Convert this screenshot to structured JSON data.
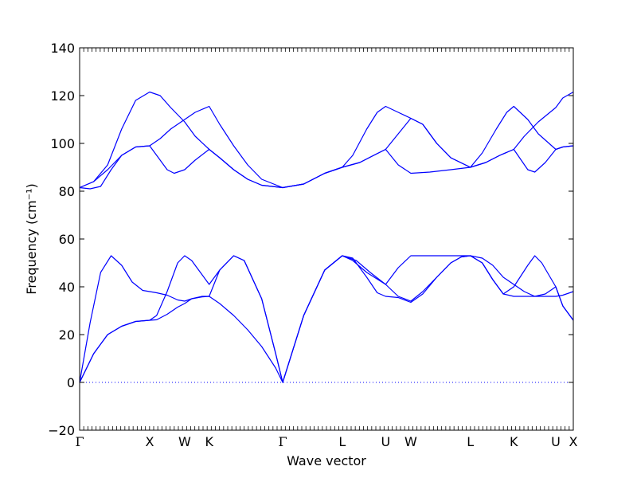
{
  "chart_data": {
    "type": "line",
    "xlabel": "Wave vector",
    "ylabel": "Frequency",
    "ylabel_unit": "(cm⁻¹)",
    "ylim": [
      -20,
      140
    ],
    "y_ticks": [
      -20,
      0,
      20,
      40,
      60,
      80,
      100,
      120,
      140
    ],
    "grid": false,
    "legend": "none",
    "line_color": "#0000ff",
    "zero_line": {
      "y": 0,
      "style": "dotted",
      "color": "#0000ff"
    },
    "q_points": [
      {
        "label": "Γ",
        "x": 0.0
      },
      {
        "label": "X",
        "x": 1.0
      },
      {
        "label": "W",
        "x": 1.5
      },
      {
        "label": "K",
        "x": 1.85
      },
      {
        "label": "Γ",
        "x": 2.9
      },
      {
        "label": "L",
        "x": 3.75
      },
      {
        "label": "U",
        "x": 4.37
      },
      {
        "label": "W",
        "x": 4.73
      },
      {
        "label": "L",
        "x": 5.58
      },
      {
        "label": "K",
        "x": 6.2
      },
      {
        "label": "U",
        "x": 6.8
      },
      {
        "label": "X",
        "x": 7.05
      }
    ],
    "branches": [
      {
        "name": "",
        "points": [
          [
            0,
            0
          ],
          [
            0.2,
            12
          ],
          [
            0.4,
            20
          ],
          [
            0.6,
            23.5
          ],
          [
            0.8,
            25.5
          ],
          [
            1.0,
            26
          ],
          [
            1.1,
            26.2
          ],
          [
            1.25,
            28.5
          ],
          [
            1.4,
            31.5
          ],
          [
            1.5,
            33
          ],
          [
            1.6,
            35
          ],
          [
            1.75,
            35.8
          ],
          [
            1.85,
            36
          ],
          [
            2.0,
            33
          ],
          [
            2.2,
            28
          ],
          [
            2.4,
            22
          ],
          [
            2.6,
            15
          ],
          [
            2.8,
            6
          ],
          [
            2.9,
            0
          ],
          [
            3.2,
            28
          ],
          [
            3.5,
            47
          ],
          [
            3.75,
            53
          ],
          [
            3.9,
            51
          ],
          [
            4.1,
            46
          ],
          [
            4.37,
            41
          ],
          [
            4.55,
            36
          ],
          [
            4.73,
            34
          ],
          [
            4.9,
            38
          ],
          [
            5.1,
            44
          ],
          [
            5.3,
            50
          ],
          [
            5.45,
            52.5
          ],
          [
            5.58,
            53
          ],
          [
            5.75,
            50
          ],
          [
            5.9,
            43
          ],
          [
            6.05,
            37
          ],
          [
            6.2,
            36
          ],
          [
            6.5,
            36
          ],
          [
            6.8,
            36
          ],
          [
            6.9,
            36.5
          ],
          [
            7.05,
            38
          ]
        ]
      },
      {
        "name": "",
        "points": [
          [
            0,
            0
          ],
          [
            0.2,
            12
          ],
          [
            0.4,
            20
          ],
          [
            0.6,
            23.5
          ],
          [
            0.8,
            25.5
          ],
          [
            1.0,
            26
          ],
          [
            1.1,
            28
          ],
          [
            1.25,
            38
          ],
          [
            1.4,
            50
          ],
          [
            1.5,
            53
          ],
          [
            1.6,
            51
          ],
          [
            1.75,
            45
          ],
          [
            1.85,
            41
          ],
          [
            2.0,
            47
          ],
          [
            2.2,
            53
          ],
          [
            2.35,
            51
          ],
          [
            2.6,
            35
          ],
          [
            2.8,
            12
          ],
          [
            2.9,
            0
          ],
          [
            3.2,
            28
          ],
          [
            3.5,
            47
          ],
          [
            3.75,
            53
          ],
          [
            3.9,
            52
          ],
          [
            4.1,
            44
          ],
          [
            4.25,
            37.5
          ],
          [
            4.37,
            36
          ],
          [
            4.55,
            35.5
          ],
          [
            4.73,
            33.5
          ],
          [
            4.9,
            37
          ],
          [
            5.1,
            44
          ],
          [
            5.3,
            50
          ],
          [
            5.45,
            52.5
          ],
          [
            5.58,
            53
          ],
          [
            5.75,
            50
          ],
          [
            5.9,
            43
          ],
          [
            6.05,
            37
          ],
          [
            6.2,
            40
          ],
          [
            6.4,
            49
          ],
          [
            6.5,
            53
          ],
          [
            6.6,
            50
          ],
          [
            6.8,
            40
          ],
          [
            6.9,
            32
          ],
          [
            7.05,
            26
          ]
        ]
      },
      {
        "name": "",
        "points": [
          [
            0,
            0
          ],
          [
            0.15,
            25
          ],
          [
            0.3,
            46
          ],
          [
            0.45,
            53
          ],
          [
            0.6,
            49
          ],
          [
            0.75,
            42
          ],
          [
            0.9,
            38.5
          ],
          [
            1.0,
            38
          ],
          [
            1.1,
            37.5
          ],
          [
            1.25,
            36.5
          ],
          [
            1.4,
            34.5
          ],
          [
            1.5,
            34
          ],
          [
            1.6,
            35
          ],
          [
            1.75,
            36
          ],
          [
            1.85,
            36
          ],
          [
            2.0,
            47
          ],
          [
            2.2,
            53
          ],
          [
            2.35,
            51
          ],
          [
            2.6,
            35
          ],
          [
            2.8,
            12
          ],
          [
            2.9,
            0
          ],
          [
            3.2,
            28
          ],
          [
            3.5,
            47
          ],
          [
            3.75,
            53
          ],
          [
            3.95,
            51
          ],
          [
            4.15,
            46
          ],
          [
            4.37,
            41
          ],
          [
            4.55,
            48
          ],
          [
            4.73,
            53
          ],
          [
            5.0,
            53
          ],
          [
            5.3,
            53
          ],
          [
            5.58,
            53
          ],
          [
            5.75,
            52
          ],
          [
            5.9,
            49
          ],
          [
            6.05,
            44
          ],
          [
            6.2,
            41
          ],
          [
            6.35,
            38
          ],
          [
            6.5,
            36
          ],
          [
            6.65,
            37
          ],
          [
            6.8,
            40
          ],
          [
            6.9,
            32
          ],
          [
            7.05,
            26
          ]
        ]
      },
      {
        "name": "",
        "points": [
          [
            0,
            81.5
          ],
          [
            0.15,
            81
          ],
          [
            0.3,
            82
          ],
          [
            0.45,
            89
          ],
          [
            0.6,
            95
          ],
          [
            0.8,
            98.5
          ],
          [
            1.0,
            99
          ],
          [
            1.1,
            95
          ],
          [
            1.25,
            89
          ],
          [
            1.35,
            87.5
          ],
          [
            1.5,
            89
          ],
          [
            1.65,
            93
          ],
          [
            1.85,
            97.5
          ],
          [
            2.0,
            94
          ],
          [
            2.2,
            89
          ],
          [
            2.4,
            85
          ],
          [
            2.6,
            82.5
          ],
          [
            2.9,
            81.5
          ],
          [
            3.2,
            83
          ],
          [
            3.5,
            87.5
          ],
          [
            3.75,
            90
          ],
          [
            4.0,
            92
          ],
          [
            4.2,
            95
          ],
          [
            4.37,
            97.5
          ],
          [
            4.55,
            91
          ],
          [
            4.73,
            87.5
          ],
          [
            5.0,
            88
          ],
          [
            5.3,
            89
          ],
          [
            5.58,
            90
          ],
          [
            5.8,
            92
          ],
          [
            6.0,
            95
          ],
          [
            6.2,
            97.5
          ],
          [
            6.4,
            89
          ],
          [
            6.5,
            88
          ],
          [
            6.65,
            92
          ],
          [
            6.8,
            97.5
          ],
          [
            6.9,
            98.5
          ],
          [
            7.05,
            99
          ]
        ]
      },
      {
        "name": "",
        "points": [
          [
            0,
            81.5
          ],
          [
            0.2,
            84
          ],
          [
            0.4,
            89
          ],
          [
            0.6,
            95
          ],
          [
            0.8,
            98.5
          ],
          [
            1.0,
            99
          ],
          [
            1.15,
            102
          ],
          [
            1.3,
            106
          ],
          [
            1.5,
            110
          ],
          [
            1.65,
            113
          ],
          [
            1.85,
            115.5
          ],
          [
            2.0,
            108
          ],
          [
            2.2,
            99
          ],
          [
            2.4,
            91
          ],
          [
            2.6,
            85
          ],
          [
            2.9,
            81.5
          ],
          [
            3.2,
            83
          ],
          [
            3.5,
            87.5
          ],
          [
            3.75,
            90
          ],
          [
            3.9,
            95
          ],
          [
            4.1,
            106
          ],
          [
            4.25,
            113
          ],
          [
            4.37,
            115.5
          ],
          [
            4.55,
            113
          ],
          [
            4.73,
            110.5
          ],
          [
            4.9,
            108
          ],
          [
            5.1,
            100
          ],
          [
            5.3,
            94
          ],
          [
            5.58,
            90
          ],
          [
            5.75,
            96
          ],
          [
            5.95,
            106
          ],
          [
            6.1,
            113
          ],
          [
            6.2,
            115.5
          ],
          [
            6.4,
            110
          ],
          [
            6.55,
            104
          ],
          [
            6.8,
            97.5
          ],
          [
            6.9,
            98.5
          ],
          [
            7.05,
            99
          ]
        ]
      },
      {
        "name": "",
        "points": [
          [
            0,
            81.5
          ],
          [
            0.2,
            84
          ],
          [
            0.4,
            91
          ],
          [
            0.6,
            106
          ],
          [
            0.8,
            118
          ],
          [
            1.0,
            121.5
          ],
          [
            1.15,
            120
          ],
          [
            1.3,
            115
          ],
          [
            1.5,
            109
          ],
          [
            1.65,
            103
          ],
          [
            1.85,
            97.5
          ],
          [
            2.0,
            94
          ],
          [
            2.2,
            89
          ],
          [
            2.4,
            85
          ],
          [
            2.6,
            82.5
          ],
          [
            2.9,
            81.5
          ],
          [
            3.2,
            83
          ],
          [
            3.5,
            87.5
          ],
          [
            3.75,
            90
          ],
          [
            4.0,
            92
          ],
          [
            4.2,
            95
          ],
          [
            4.37,
            97.5
          ],
          [
            4.55,
            104
          ],
          [
            4.73,
            110.5
          ],
          [
            4.9,
            108
          ],
          [
            5.1,
            100
          ],
          [
            5.3,
            94
          ],
          [
            5.58,
            90
          ],
          [
            5.8,
            92
          ],
          [
            6.0,
            95
          ],
          [
            6.2,
            97.5
          ],
          [
            6.35,
            103
          ],
          [
            6.55,
            109
          ],
          [
            6.8,
            115
          ],
          [
            6.9,
            119
          ],
          [
            7.05,
            121.5
          ]
        ]
      }
    ]
  }
}
